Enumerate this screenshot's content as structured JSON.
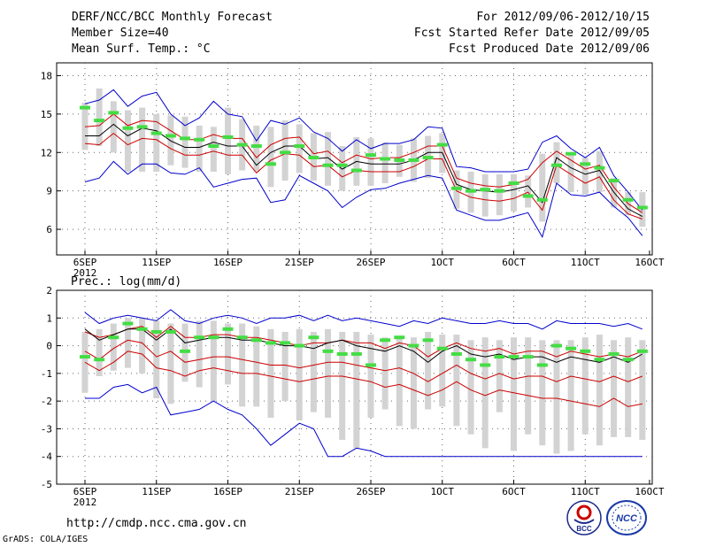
{
  "header": {
    "title": "DERF/NCC/BCC Monthly Forecast",
    "member_size": "Member Size=40",
    "variable": "Mean Surf. Temp.: °C",
    "period": "For 2012/09/06-2012/10/15",
    "started": "Fcst Started Refer Date 2012/09/05",
    "produced": "Fcst Produced Date 2012/09/06"
  },
  "footer": {
    "url": "http://cmdp.ncc.cma.gov.cn",
    "grads": "GrADS: COLA/IGES",
    "logo1_text": "BCC",
    "logo2_text": "NCC"
  },
  "colors": {
    "spread_bar": "#d3d3d3",
    "envelope": "#0000cc",
    "inner_band": "#cc0000",
    "mean": "#000000",
    "marker": "#44dd44",
    "grid": "#666666"
  },
  "chart_data": [
    {
      "type": "line",
      "name": "temperature",
      "title": "Mean Surf. Temp.: °C",
      "ylim": [
        4,
        19
      ],
      "yticks": [
        6,
        9,
        12,
        15,
        18
      ],
      "x_ticks": [
        {
          "day": 0,
          "label": "6SEP",
          "sub": "2012"
        },
        {
          "day": 5,
          "label": "11SEP"
        },
        {
          "day": 10,
          "label": "16SEP"
        },
        {
          "day": 15,
          "label": "21SEP"
        },
        {
          "day": 20,
          "label": "26SEP"
        },
        {
          "day": 25,
          "label": "1OCT"
        },
        {
          "day": 30,
          "label": "6OCT"
        },
        {
          "day": 35,
          "label": "11OCT"
        },
        {
          "day": 39.5,
          "label": "16OCT"
        }
      ],
      "days": [
        0,
        1,
        2,
        3,
        4,
        5,
        6,
        7,
        8,
        9,
        10,
        11,
        12,
        13,
        14,
        15,
        16,
        17,
        18,
        19,
        20,
        21,
        22,
        23,
        24,
        25,
        26,
        27,
        28,
        29,
        30,
        31,
        32,
        33,
        34,
        35,
        36,
        37,
        38,
        39
      ],
      "max": [
        15.8,
        16.1,
        16.9,
        15.6,
        16.4,
        16.7,
        15.0,
        14.1,
        14.7,
        16.0,
        15.0,
        14.8,
        12.9,
        14.5,
        14.2,
        14.7,
        13.6,
        13.1,
        12.1,
        13.0,
        12.3,
        12.7,
        12.7,
        13.0,
        14.0,
        13.9,
        10.9,
        10.8,
        10.5,
        10.5,
        10.5,
        10.7,
        12.8,
        13.3,
        12.3,
        11.6,
        12.4,
        10.2,
        8.9,
        7.5
      ],
      "upper": [
        14.0,
        14.1,
        15.0,
        14.1,
        14.5,
        14.4,
        13.7,
        13.0,
        13.0,
        13.4,
        13.1,
        13.1,
        11.6,
        12.6,
        13.1,
        13.2,
        11.9,
        12.1,
        11.2,
        11.8,
        11.5,
        11.6,
        11.6,
        12.0,
        12.5,
        12.5,
        10.0,
        9.6,
        9.4,
        9.3,
        9.5,
        9.9,
        11.2,
        12.1,
        11.4,
        10.7,
        11.0,
        9.3,
        8.0,
        7.3
      ],
      "mean": [
        13.3,
        13.3,
        14.2,
        13.3,
        13.9,
        13.7,
        12.9,
        12.4,
        12.4,
        12.8,
        12.5,
        12.5,
        11.0,
        12.0,
        12.5,
        12.5,
        11.5,
        11.6,
        10.7,
        11.3,
        11.1,
        11.1,
        11.1,
        11.4,
        12.0,
        12.0,
        9.5,
        9.1,
        9.0,
        8.9,
        9.1,
        9.4,
        8.1,
        11.6,
        10.8,
        10.3,
        10.6,
        8.9,
        7.6,
        7.0
      ],
      "lower": [
        12.7,
        12.6,
        13.5,
        12.6,
        13.1,
        13.0,
        12.3,
        11.8,
        11.8,
        12.1,
        11.8,
        11.8,
        10.4,
        11.4,
        11.9,
        11.8,
        10.9,
        11.0,
        10.1,
        10.6,
        10.5,
        10.5,
        10.5,
        10.9,
        11.5,
        11.5,
        9.0,
        8.5,
        8.3,
        8.2,
        8.4,
        8.9,
        7.5,
        11.0,
        10.3,
        9.6,
        10.1,
        8.3,
        7.2,
        6.8
      ],
      "min": [
        9.7,
        10.0,
        11.3,
        10.3,
        11.1,
        11.1,
        10.4,
        10.3,
        10.8,
        9.3,
        9.6,
        9.9,
        10.0,
        8.1,
        8.3,
        10.2,
        9.6,
        9.0,
        7.7,
        8.5,
        9.1,
        9.2,
        9.6,
        9.9,
        10.2,
        10.0,
        7.5,
        7.1,
        6.7,
        6.7,
        7.0,
        7.3,
        5.4,
        9.6,
        8.7,
        8.6,
        8.9,
        7.8,
        6.9,
        5.5
      ],
      "bar_top": [
        15.9,
        17.0,
        16.0,
        15.3,
        15.5,
        15.0,
        14.9,
        14.8,
        14.1,
        14.0,
        15.5,
        14.6,
        14.1,
        14.0,
        14.5,
        14.2,
        13.5,
        13.6,
        12.5,
        13.2,
        13.1,
        12.8,
        12.6,
        13.1,
        13.3,
        13.5,
        10.6,
        10.5,
        10.3,
        10.3,
        10.3,
        10.2,
        11.9,
        12.8,
        12.0,
        11.6,
        12.1,
        10.0,
        8.9,
        8.9
      ],
      "bar_bottom": [
        12.2,
        12.5,
        12.0,
        10.5,
        10.5,
        10.5,
        11.0,
        10.8,
        10.5,
        10.5,
        10.3,
        10.6,
        10.5,
        9.3,
        9.8,
        10.4,
        9.8,
        9.4,
        9.0,
        9.4,
        9.4,
        9.6,
        10.1,
        9.7,
        10.0,
        10.4,
        7.6,
        7.3,
        7.0,
        7.1,
        7.4,
        7.7,
        6.6,
        9.6,
        8.9,
        8.7,
        8.9,
        7.7,
        7.1,
        6.2
      ],
      "marker": [
        15.5,
        14.5,
        15.1,
        13.9,
        14.0,
        13.5,
        13.3,
        13.1,
        13.0,
        12.5,
        13.2,
        12.6,
        12.5,
        11.1,
        12.0,
        12.5,
        11.6,
        11.0,
        11.0,
        10.6,
        11.8,
        11.5,
        11.4,
        11.4,
        11.6,
        12.6,
        9.2,
        9.0,
        9.1,
        9.0,
        9.6,
        8.6,
        8.3,
        11.0,
        11.9,
        11.1,
        10.8,
        9.8,
        8.3,
        7.7
      ]
    },
    {
      "type": "line",
      "name": "precipitation",
      "title": "Prec.: log(mm/d)",
      "ylim": [
        -5,
        2
      ],
      "yticks": [
        -5,
        -4,
        -3,
        -2,
        -1,
        0,
        1,
        2
      ],
      "x_ticks": [
        {
          "day": 0,
          "label": "6SEP",
          "sub": "2012"
        },
        {
          "day": 5,
          "label": "11SEP"
        },
        {
          "day": 10,
          "label": "16SEP"
        },
        {
          "day": 15,
          "label": "21SEP"
        },
        {
          "day": 20,
          "label": "26SEP"
        },
        {
          "day": 25,
          "label": "1OCT"
        },
        {
          "day": 30,
          "label": "6OCT"
        },
        {
          "day": 35,
          "label": "11OCT"
        },
        {
          "day": 39.5,
          "label": "16OCT"
        }
      ],
      "days": [
        0,
        1,
        2,
        3,
        4,
        5,
        6,
        7,
        8,
        9,
        10,
        11,
        12,
        13,
        14,
        15,
        16,
        17,
        18,
        19,
        20,
        21,
        22,
        23,
        24,
        25,
        26,
        27,
        28,
        29,
        30,
        31,
        32,
        33,
        34,
        35,
        36,
        37,
        38,
        39
      ],
      "max": [
        1.2,
        0.8,
        1.0,
        1.1,
        1.0,
        0.9,
        1.3,
        0.9,
        0.8,
        1.0,
        1.1,
        1.0,
        0.8,
        1.0,
        1.0,
        1.1,
        0.9,
        1.1,
        0.9,
        1.0,
        0.9,
        0.8,
        0.7,
        0.9,
        0.8,
        1.0,
        0.9,
        0.8,
        0.8,
        0.9,
        0.8,
        0.8,
        0.6,
        0.9,
        0.8,
        0.8,
        0.8,
        0.7,
        0.8,
        0.6
      ],
      "upper": [
        0.5,
        0.3,
        0.4,
        0.6,
        0.7,
        0.3,
        0.7,
        0.3,
        0.3,
        0.4,
        0.4,
        0.3,
        0.3,
        0.2,
        0.1,
        0.0,
        0.1,
        0.1,
        0.2,
        0.1,
        0.1,
        -0.1,
        0.1,
        0.0,
        -0.4,
        -0.1,
        0.1,
        -0.1,
        -0.2,
        -0.1,
        -0.3,
        -0.2,
        -0.2,
        -0.4,
        -0.2,
        -0.3,
        -0.4,
        -0.3,
        -0.4,
        -0.2
      ],
      "mean": [
        0.6,
        0.2,
        0.4,
        0.6,
        0.6,
        0.2,
        0.6,
        0.1,
        0.2,
        0.3,
        0.3,
        0.2,
        0.2,
        0.1,
        0.0,
        0.0,
        -0.1,
        0.1,
        0.2,
        0.0,
        -0.1,
        -0.2,
        0.0,
        -0.2,
        -0.6,
        -0.2,
        0.0,
        -0.3,
        -0.4,
        -0.3,
        -0.5,
        -0.4,
        -0.4,
        -0.6,
        -0.4,
        -0.5,
        -0.6,
        -0.4,
        -0.6,
        -0.3
      ],
      "lower": [
        -0.2,
        -0.5,
        -0.1,
        0.2,
        0.1,
        -0.4,
        -0.2,
        -0.6,
        -0.5,
        -0.4,
        -0.4,
        -0.5,
        -0.6,
        -0.7,
        -0.7,
        -0.8,
        -0.7,
        -0.6,
        -0.6,
        -0.7,
        -0.8,
        -0.9,
        -0.8,
        -1.0,
        -1.3,
        -1.0,
        -0.7,
        -1.0,
        -1.2,
        -1.0,
        -1.2,
        -1.1,
        -1.1,
        -1.3,
        -1.1,
        -1.2,
        -1.3,
        -1.1,
        -1.3,
        -1.1
      ],
      "lower2": [
        -0.6,
        -0.9,
        -0.6,
        -0.2,
        -0.3,
        -0.8,
        -0.9,
        -1.1,
        -0.9,
        -0.8,
        -0.9,
        -1.0,
        -1.0,
        -1.1,
        -1.2,
        -1.3,
        -1.2,
        -1.1,
        -1.1,
        -1.2,
        -1.3,
        -1.5,
        -1.4,
        -1.6,
        -1.8,
        -1.6,
        -1.3,
        -1.6,
        -1.8,
        -1.6,
        -1.7,
        -1.8,
        -1.9,
        -1.9,
        -2.0,
        -2.1,
        -2.2,
        -1.9,
        -2.2,
        -2.1
      ],
      "min": [
        -1.9,
        -1.9,
        -1.5,
        -1.4,
        -1.7,
        -1.5,
        -2.5,
        -2.4,
        -2.3,
        -2.0,
        -2.3,
        -2.5,
        -3.0,
        -3.6,
        -3.2,
        -2.8,
        -3.0,
        -4.0,
        -4.0,
        -3.7,
        -3.8,
        -4.0,
        -4.0,
        -4.0,
        -4.0,
        -4.0,
        -4.0,
        -4.0,
        -4.0,
        -4.0,
        -4.0,
        -4.0,
        -4.0,
        -4.0,
        -4.0,
        -4.0,
        -4.0,
        -4.0,
        -4.0,
        -4.0
      ],
      "bar_top": [
        0.5,
        0.6,
        0.8,
        1.0,
        1.0,
        0.9,
        0.8,
        0.8,
        0.9,
        0.9,
        0.8,
        0.8,
        0.7,
        0.6,
        0.5,
        0.6,
        0.5,
        0.6,
        0.5,
        0.5,
        0.4,
        0.3,
        0.3,
        0.3,
        0.5,
        0.4,
        0.4,
        0.2,
        0.3,
        0.2,
        0.3,
        0.3,
        0.2,
        0.2,
        0.2,
        0.3,
        0.4,
        0.2,
        0.3,
        0.2
      ],
      "bar_bottom": [
        -1.7,
        -1.1,
        -0.9,
        -0.8,
        -1.0,
        -1.9,
        -2.1,
        -1.3,
        -1.5,
        -2.0,
        -1.4,
        -2.2,
        -2.2,
        -2.6,
        -2.0,
        -2.7,
        -2.4,
        -2.6,
        -3.4,
        -3.7,
        -2.6,
        -2.3,
        -2.9,
        -3.0,
        -2.3,
        -2.2,
        -2.9,
        -3.2,
        -3.7,
        -2.4,
        -3.8,
        -3.2,
        -3.6,
        -3.9,
        -3.8,
        -3.2,
        -3.6,
        -3.3,
        -3.3,
        -3.4
      ],
      "marker": [
        -0.4,
        -0.5,
        0.3,
        0.8,
        0.6,
        0.5,
        0.5,
        -0.2,
        0.3,
        0.3,
        0.6,
        0.3,
        0.2,
        0.1,
        0.1,
        0.0,
        0.3,
        -0.2,
        -0.3,
        -0.3,
        -0.7,
        0.2,
        0.3,
        0.0,
        0.2,
        -0.1,
        -0.3,
        -0.5,
        -0.7,
        -0.4,
        -0.4,
        -0.4,
        -0.7,
        0.0,
        -0.1,
        -0.2,
        -0.5,
        -0.3,
        -0.5,
        -0.2
      ]
    }
  ]
}
